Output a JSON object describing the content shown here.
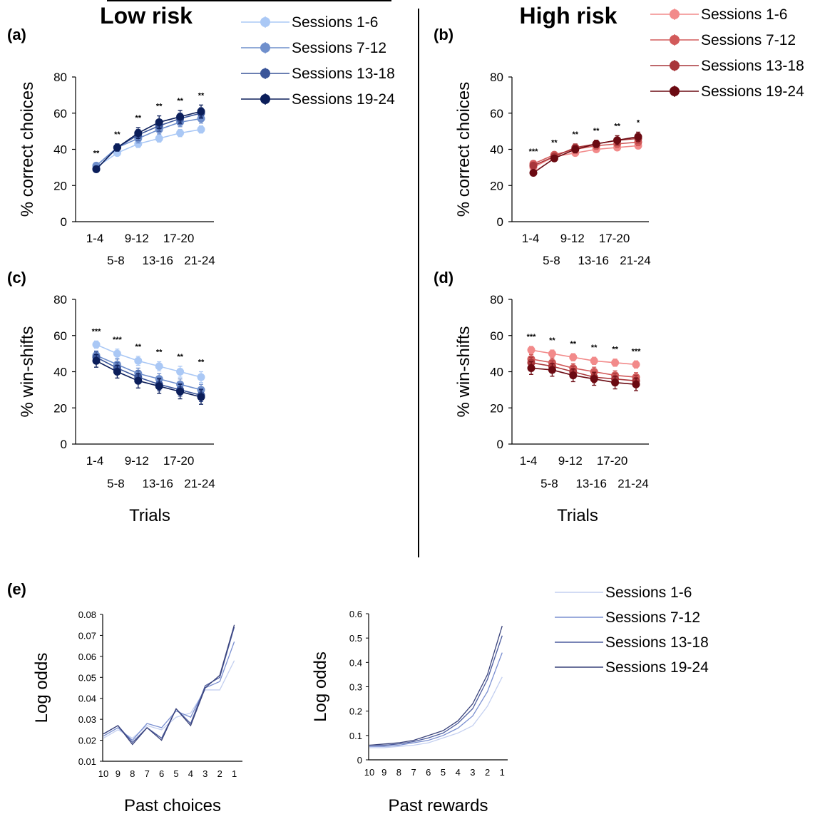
{
  "group_titles": {
    "low": "Low risk",
    "high": "High risk",
    "low_color": "#2222ee",
    "high_color": "#dd3333"
  },
  "trials_label": "Trials",
  "x_categories_top": [
    "1-4",
    "9-12",
    "17-20"
  ],
  "x_categories_bottom": [
    "5-8",
    "13-16",
    "21-24"
  ],
  "legends": {
    "low": [
      "Sessions 1-6",
      "Sessions 7-12",
      "Sessions 13-18",
      "Sessions 19-24"
    ],
    "high": [
      "Sessions 1-6",
      "Sessions 7-12",
      "Sessions 13-18",
      "Sessions 19-24"
    ],
    "e": [
      "Sessions 1-6",
      "Sessions 7-12",
      "Sessions 13-18",
      "Sessions 19-24"
    ]
  },
  "colors": {
    "low": [
      "#aac8f5",
      "#6f8fcc",
      "#3a5599",
      "#0b1e5a"
    ],
    "high": [
      "#f28a8a",
      "#d25a5a",
      "#a8363a",
      "#6b0a12"
    ],
    "e": [
      "#c3cff0",
      "#7a8fd0",
      "#4c5c9e",
      "#39427a"
    ]
  },
  "chart_data": [
    {
      "panel": "(a)",
      "type": "line",
      "group": "Low risk",
      "ylabel": "% correct choices",
      "ylim": [
        0,
        80
      ],
      "yticks": [
        0,
        20,
        40,
        60,
        80
      ],
      "categories": [
        "1-4",
        "5-8",
        "9-12",
        "13-16",
        "17-20",
        "21-24"
      ],
      "significance": [
        "**",
        "**",
        "**",
        "**",
        "**",
        "**"
      ],
      "series": [
        {
          "name": "Sessions 1-6",
          "values": [
            30,
            38,
            43,
            46,
            49,
            51
          ],
          "errors": [
            1.5,
            1.5,
            2,
            2,
            2,
            2
          ]
        },
        {
          "name": "Sessions 7-12",
          "values": [
            31,
            41,
            46,
            51,
            55,
            57
          ],
          "errors": [
            1.5,
            1.5,
            2.5,
            2.5,
            2.5,
            2.5
          ]
        },
        {
          "name": "Sessions 13-18",
          "values": [
            29,
            41,
            48,
            53,
            57,
            60
          ],
          "errors": [
            1.5,
            2,
            3,
            3,
            3,
            3
          ]
        },
        {
          "name": "Sessions 19-24",
          "values": [
            29,
            41,
            49,
            55,
            58,
            61
          ],
          "errors": [
            1.5,
            2,
            3,
            3.5,
            3.5,
            3.5
          ]
        }
      ]
    },
    {
      "panel": "(b)",
      "type": "line",
      "group": "High risk",
      "ylabel": "% correct choices",
      "ylim": [
        0,
        80
      ],
      "yticks": [
        0,
        20,
        40,
        60,
        80
      ],
      "categories": [
        "1-4",
        "5-8",
        "9-12",
        "13-16",
        "17-20",
        "21-24"
      ],
      "significance": [
        "***",
        "**",
        "**",
        "**",
        "**",
        "*"
      ],
      "series": [
        {
          "name": "Sessions 1-6",
          "values": [
            30,
            36,
            38,
            40,
            41,
            42
          ],
          "errors": [
            1.5,
            1.5,
            1.5,
            1.5,
            1.5,
            1.5
          ]
        },
        {
          "name": "Sessions 7-12",
          "values": [
            32,
            37,
            40,
            42,
            43,
            44
          ],
          "errors": [
            1.5,
            1.5,
            2,
            2,
            2,
            2
          ]
        },
        {
          "name": "Sessions 13-18",
          "values": [
            31,
            36,
            41,
            43,
            45,
            46
          ],
          "errors": [
            1.5,
            1.5,
            2,
            2,
            2.5,
            2.5
          ]
        },
        {
          "name": "Sessions 19-24",
          "values": [
            27,
            35,
            40,
            43,
            45,
            47
          ],
          "errors": [
            1.5,
            1.5,
            2,
            2,
            2.5,
            2.5
          ]
        }
      ]
    },
    {
      "panel": "(c)",
      "type": "line",
      "group": "Low risk",
      "ylabel": "% win-shifts",
      "xlabel": "Trials",
      "ylim": [
        0,
        80
      ],
      "yticks": [
        0,
        20,
        40,
        60,
        80
      ],
      "categories": [
        "1-4",
        "5-8",
        "9-12",
        "13-16",
        "17-20",
        "21-24"
      ],
      "significance": [
        "***",
        "***",
        "**",
        "**",
        "**",
        "**"
      ],
      "series": [
        {
          "name": "Sessions 1-6",
          "values": [
            55,
            50,
            46,
            43,
            40,
            37
          ],
          "errors": [
            2,
            2.5,
            2.5,
            2.5,
            3,
            3
          ]
        },
        {
          "name": "Sessions 7-12",
          "values": [
            49,
            44,
            39,
            36,
            33,
            30
          ],
          "errors": [
            2.5,
            3,
            3,
            3,
            3,
            3
          ]
        },
        {
          "name": "Sessions 13-18",
          "values": [
            48,
            42,
            37,
            33,
            30,
            27
          ],
          "errors": [
            3,
            3,
            3.5,
            3.5,
            3.5,
            3.5
          ]
        },
        {
          "name": "Sessions 19-24",
          "values": [
            46,
            40,
            35,
            32,
            29,
            26
          ],
          "errors": [
            3.5,
            3.5,
            4,
            4,
            4,
            4
          ]
        }
      ]
    },
    {
      "panel": "(d)",
      "type": "line",
      "group": "High risk",
      "ylabel": "% win-shifts",
      "xlabel": "Trials",
      "ylim": [
        0,
        80
      ],
      "yticks": [
        0,
        20,
        40,
        60,
        80
      ],
      "categories": [
        "1-4",
        "5-8",
        "9-12",
        "13-16",
        "17-20",
        "21-24"
      ],
      "significance": [
        "***",
        "**",
        "**",
        "**",
        "**",
        "***"
      ],
      "series": [
        {
          "name": "Sessions 1-6",
          "values": [
            52,
            50,
            48,
            46,
            45,
            44
          ],
          "errors": [
            2,
            2,
            2,
            2,
            2,
            2
          ]
        },
        {
          "name": "Sessions 7-12",
          "values": [
            47,
            45,
            42,
            40,
            38,
            37
          ],
          "errors": [
            2.5,
            2.5,
            2.5,
            2.5,
            2.5,
            2.5
          ]
        },
        {
          "name": "Sessions 13-18",
          "values": [
            45,
            43,
            40,
            37,
            36,
            35
          ],
          "errors": [
            3,
            3,
            3,
            3,
            3,
            3
          ]
        },
        {
          "name": "Sessions 19-24",
          "values": [
            42,
            41,
            38,
            36,
            34,
            33
          ],
          "errors": [
            3.5,
            3.5,
            3.5,
            3.5,
            3.5,
            3.5
          ]
        }
      ]
    },
    {
      "panel": "(e)",
      "type": "line",
      "ylabel": "Log odds",
      "xlabel": "Past choices",
      "ylim": [
        0.01,
        0.08
      ],
      "yticks": [
        "0.01",
        "0.02",
        "0.03",
        "0.04",
        "0.05",
        "0.06",
        "0.07",
        "0.08"
      ],
      "categories": [
        "10",
        "9",
        "8",
        "7",
        "6",
        "5",
        "4",
        "3",
        "2",
        "1"
      ],
      "series": [
        {
          "name": "Sessions 1-6",
          "values": [
            0.021,
            0.025,
            0.021,
            0.027,
            0.025,
            0.031,
            0.033,
            0.044,
            0.044,
            0.058
          ]
        },
        {
          "name": "Sessions 7-12",
          "values": [
            0.022,
            0.026,
            0.02,
            0.028,
            0.026,
            0.034,
            0.031,
            0.045,
            0.048,
            0.067
          ]
        },
        {
          "name": "Sessions 13-18",
          "values": [
            0.023,
            0.027,
            0.019,
            0.026,
            0.021,
            0.035,
            0.028,
            0.046,
            0.05,
            0.074
          ]
        },
        {
          "name": "Sessions 19-24",
          "values": [
            0.023,
            0.027,
            0.018,
            0.026,
            0.02,
            0.035,
            0.027,
            0.045,
            0.051,
            0.075
          ]
        }
      ]
    },
    {
      "panel": "(e)",
      "type": "line",
      "ylabel": "Log odds",
      "xlabel": "Past rewards",
      "ylim": [
        0,
        0.6
      ],
      "yticks": [
        "0",
        "0.1",
        "0.2",
        "0.3",
        "0.4",
        "0.5",
        "0.6"
      ],
      "categories": [
        "10",
        "9",
        "8",
        "7",
        "6",
        "5",
        "4",
        "3",
        "2",
        "1"
      ],
      "series": [
        {
          "name": "Sessions 1-6",
          "values": [
            0.05,
            0.05,
            0.055,
            0.06,
            0.07,
            0.09,
            0.11,
            0.14,
            0.22,
            0.34
          ]
        },
        {
          "name": "Sessions 7-12",
          "values": [
            0.055,
            0.055,
            0.06,
            0.07,
            0.08,
            0.1,
            0.13,
            0.18,
            0.28,
            0.44
          ]
        },
        {
          "name": "Sessions 13-18",
          "values": [
            0.06,
            0.06,
            0.065,
            0.075,
            0.09,
            0.11,
            0.15,
            0.21,
            0.33,
            0.51
          ]
        },
        {
          "name": "Sessions 19-24",
          "values": [
            0.06,
            0.065,
            0.07,
            0.08,
            0.1,
            0.12,
            0.16,
            0.23,
            0.35,
            0.55
          ]
        }
      ]
    }
  ]
}
